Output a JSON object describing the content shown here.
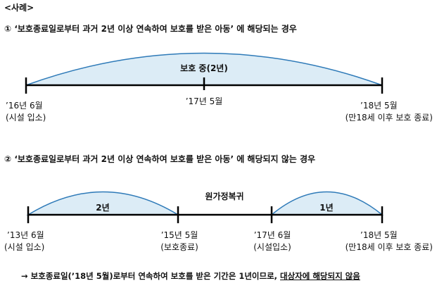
{
  "section_label": "<사례>",
  "case1": {
    "heading": "① ‘보호종료일로부터 과거 2년 이상 연속하여 보호를 받은 아동’ 에 해당되는 경우",
    "arc_label": "보호 중(2년)",
    "start_date": "’16년 6월",
    "start_note": "(시설 입소)",
    "mid_date": "’17년 5월",
    "end_date": "’18년 5월",
    "end_note": "(만18세 이후 보호 종료)"
  },
  "case2": {
    "heading": "② ‘보호종료일로부터 과거 2년 이상 연속하여 보호를 받은 아동’ 에 해당되지 않는 경우",
    "arc1_label": "2년",
    "gap_label": "원가정복귀",
    "arc2_label": "1년",
    "p1_date": "’13년 6월",
    "p1_note": "(시설 입소)",
    "p2_date": "’15년 5월",
    "p2_note": "(보호종료)",
    "p3_date": "’17년 6월",
    "p3_note": "(시설입소)",
    "p4_date": "’18년 5월",
    "p4_note": "(만18세 이후 보호 종료)"
  },
  "conclusion": {
    "arrow": "→",
    "text": "보호종료일(’18년 5월)로부터 연속하여 보호를 받은 기간은 1년이므로, ",
    "underlined": "대상자에 해당되지 않음"
  },
  "colors": {
    "arc_fill": "#dcecf6",
    "arc_stroke": "#2e7ab8",
    "line": "#000000"
  }
}
